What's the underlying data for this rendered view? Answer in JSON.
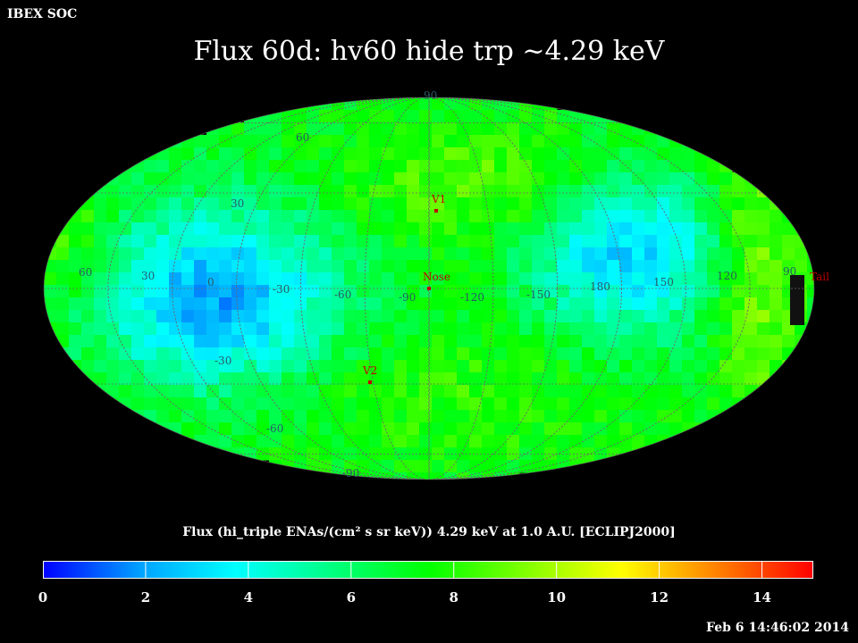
{
  "header": {
    "tag": "IBEX SOC"
  },
  "title": "Flux   60d: hv60 hide trp ~4.29 keV",
  "map": {
    "projection": "Mollweide",
    "frame": "ECLIPJ2000",
    "lat_labels": [
      "90",
      "60",
      "30",
      "0",
      "-30",
      "-60",
      "-90"
    ],
    "lon_labels": [
      "60",
      "30",
      "0",
      "-30",
      "-60",
      "-90",
      "-120",
      "-150",
      "180",
      "150",
      "120",
      "90"
    ],
    "markers": [
      {
        "label": "V1",
        "color": "#c00000"
      },
      {
        "label": "Nose",
        "color": "#c00000"
      },
      {
        "label": "V2",
        "color": "#c00000"
      },
      {
        "label": "Tail",
        "color": "#c00000"
      }
    ],
    "colormap": [
      "#0000ff",
      "#00a0ff",
      "#00ffff",
      "#00ff80",
      "#00ff00",
      "#80ff00",
      "#ffff00",
      "#ff8000",
      "#ff0000"
    ]
  },
  "colorbar": {
    "caption": "Flux (hi_triple ENAs/(cm² s sr keV))  4.29 keV at 1.0 A.U. [ECLIPJ2000]",
    "min": 0,
    "max": 15,
    "ticks": [
      "0",
      "2",
      "4",
      "6",
      "8",
      "10",
      "12",
      "14"
    ]
  },
  "timestamp": "Feb  6 14:46:02 2014"
}
